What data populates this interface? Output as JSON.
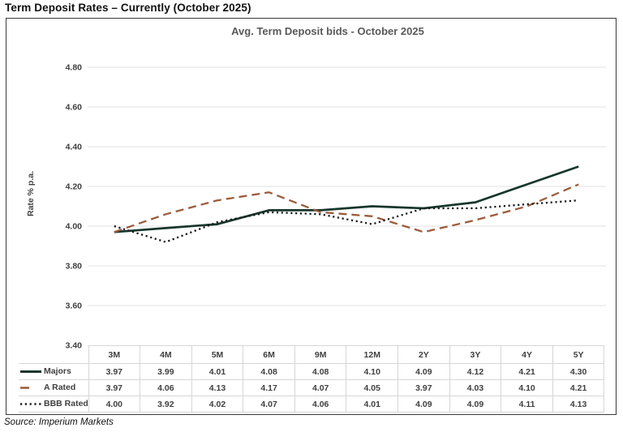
{
  "page": {
    "title": "Term Deposit Rates – Currently (October 2025)",
    "source": "Source: Imperium Markets"
  },
  "chart_data": {
    "type": "line",
    "title": "Avg. Term Deposit bids - October 2025",
    "xlabel": "",
    "ylabel": "Rate % p.a.",
    "categories": [
      "3M",
      "4M",
      "5M",
      "6M",
      "9M",
      "12M",
      "2Y",
      "3Y",
      "4Y",
      "5Y"
    ],
    "series": [
      {
        "name": "Majors",
        "style": "solid",
        "color": "#17362c",
        "values": [
          3.97,
          3.99,
          4.01,
          4.08,
          4.08,
          4.1,
          4.09,
          4.12,
          4.21,
          4.3
        ]
      },
      {
        "name": "A Rated",
        "style": "dashed",
        "color": "#9c5c3c",
        "values": [
          3.97,
          4.06,
          4.13,
          4.17,
          4.07,
          4.05,
          3.97,
          4.03,
          4.1,
          4.21
        ]
      },
      {
        "name": "BBB Rated",
        "style": "dotted",
        "color": "#1b1b1b",
        "values": [
          4.0,
          3.92,
          4.02,
          4.07,
          4.06,
          4.01,
          4.09,
          4.09,
          4.11,
          4.13
        ]
      }
    ],
    "ylim": [
      3.4,
      4.8
    ],
    "ytick_labels": [
      "3.40",
      "3.60",
      "3.80",
      "4.00",
      "4.20",
      "4.40",
      "4.60",
      "4.80"
    ],
    "grid": true,
    "gridline_color": "#ececec",
    "tick_label_color": "#404040",
    "legend_position": "table-left",
    "value_decimals": 2
  }
}
